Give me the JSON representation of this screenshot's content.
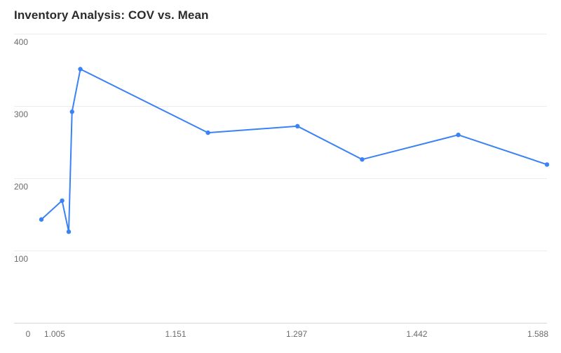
{
  "chart_data": {
    "type": "line",
    "title": "Inventory Analysis: COV vs. Mean",
    "xlabel": "",
    "ylabel": "",
    "x_ticks": [
      "1.005",
      "1.151",
      "1.297",
      "1.442",
      "1.588"
    ],
    "x_tick_values": [
      1.005,
      1.151,
      1.297,
      1.442,
      1.588
    ],
    "x_zero_label": "0",
    "y_ticks": [
      "100",
      "200",
      "300",
      "400"
    ],
    "y_tick_values": [
      100,
      200,
      300,
      400
    ],
    "ylim": [
      0,
      400
    ],
    "xlim": [
      0.989,
      1.599
    ],
    "grid": "horizontal",
    "legend": "none",
    "series": [
      {
        "color": "#3b82f6",
        "points": [
          {
            "x": 0.989,
            "y": 143
          },
          {
            "x": 1.014,
            "y": 169
          },
          {
            "x": 1.022,
            "y": 126
          },
          {
            "x": 1.026,
            "y": 292
          },
          {
            "x": 1.036,
            "y": 351
          },
          {
            "x": 1.19,
            "y": 263
          },
          {
            "x": 1.298,
            "y": 272
          },
          {
            "x": 1.376,
            "y": 226
          },
          {
            "x": 1.492,
            "y": 260
          },
          {
            "x": 1.599,
            "y": 219
          }
        ]
      }
    ]
  }
}
